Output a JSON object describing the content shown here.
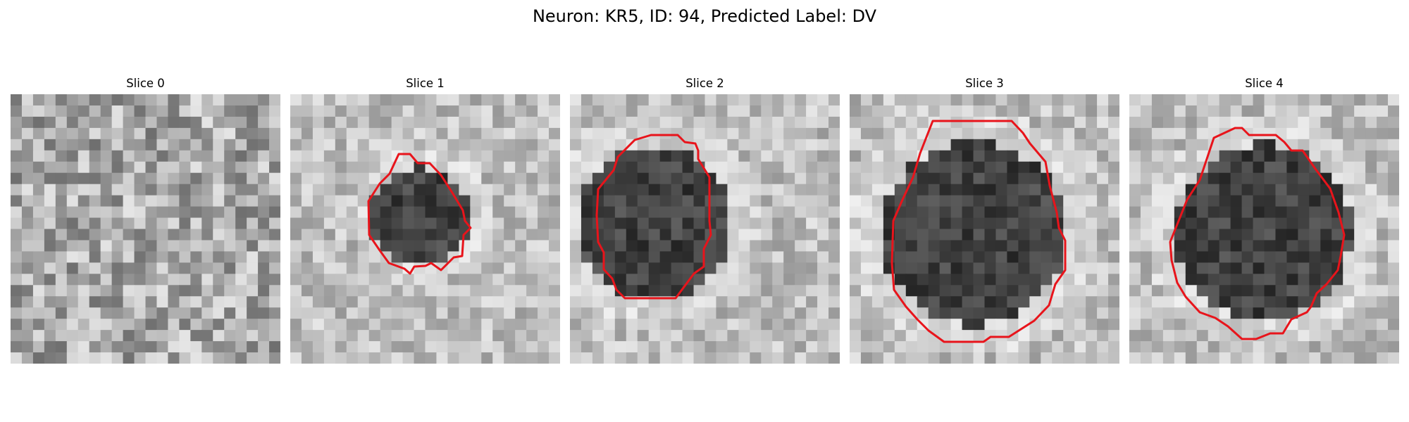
{
  "figure": {
    "title": "Neuron: KR5, ID: 94, Predicted Label: DV"
  },
  "panels": [
    {
      "title": "Slice 0",
      "seed": 17,
      "contour": null
    },
    {
      "title": "Slice 1",
      "seed": 29,
      "contour": "small"
    },
    {
      "title": "Slice 2",
      "seed": 41,
      "contour": "medium"
    },
    {
      "title": "Slice 3",
      "seed": 53,
      "contour": "large"
    },
    {
      "title": "Slice 4",
      "seed": 67,
      "contour": "large-offset"
    }
  ],
  "style": {
    "contour_color": "#e8141b",
    "colormap": "gray"
  }
}
